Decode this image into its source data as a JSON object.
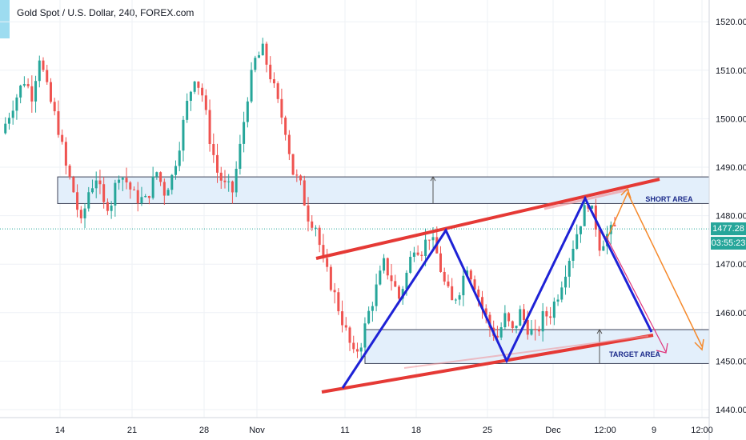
{
  "header": {
    "title": "Gold Spot / U.S. Dollar, 240, FOREX.com"
  },
  "price_axis": {
    "current_price": "1477.28",
    "countdown": "03:55:23",
    "current_color": "#26a69a",
    "countdown_color": "#26a69a"
  },
  "colors": {
    "up": "#26a69a",
    "down": "#ef5350",
    "zone_fill": "#e3effb",
    "channel": "#e53935",
    "pattern": "#1e22d6",
    "orange_arrow": "#f5892b",
    "pink_arrow": "#e0347a"
  },
  "chart_data": {
    "type": "candlestick",
    "symbol": "Gold Spot / U.S. Dollar",
    "timeframe": "240",
    "source": "FOREX.com",
    "ylim": [
      1438,
      1527
    ],
    "y_ticks": [
      1440,
      1450,
      1460,
      1470,
      1480,
      1490,
      1500,
      1510,
      1520
    ],
    "y_tick_labels": [
      "1440.00",
      "1450.00",
      "1460.00",
      "1470.00",
      "1480.00",
      "1490.00",
      "1500.00",
      "1510.00",
      "1520.00"
    ],
    "x_tick_labels": [
      "14",
      "21",
      "28",
      "Nov",
      "11",
      "18",
      "25",
      "Dec",
      "12:00",
      "9",
      "12:00"
    ],
    "close_path": [
      [
        0,
        1497
      ],
      [
        3,
        1503
      ],
      [
        6,
        1508
      ],
      [
        8,
        1505
      ],
      [
        10,
        1513
      ],
      [
        12,
        1506
      ],
      [
        15,
        1498
      ],
      [
        17,
        1490
      ],
      [
        19,
        1485
      ],
      [
        21,
        1478
      ],
      [
        23,
        1485
      ],
      [
        25,
        1488
      ],
      [
        27,
        1482
      ],
      [
        29,
        1483
      ],
      [
        31,
        1489
      ],
      [
        33,
        1487
      ],
      [
        35,
        1484
      ],
      [
        38,
        1483
      ],
      [
        41,
        1489
      ],
      [
        43,
        1485
      ],
      [
        45,
        1488
      ],
      [
        47,
        1495
      ],
      [
        49,
        1503
      ],
      [
        51,
        1509
      ],
      [
        53,
        1505
      ],
      [
        55,
        1496
      ],
      [
        57,
        1489
      ],
      [
        59,
        1486
      ],
      [
        61,
        1485
      ],
      [
        63,
        1494
      ],
      [
        65,
        1505
      ],
      [
        67,
        1512
      ],
      [
        69,
        1514
      ],
      [
        71,
        1509
      ],
      [
        73,
        1503
      ],
      [
        75,
        1498
      ],
      [
        77,
        1489
      ],
      [
        79,
        1486
      ],
      [
        81,
        1480
      ],
      [
        83,
        1478
      ],
      [
        85,
        1470
      ],
      [
        87,
        1466
      ],
      [
        89,
        1461
      ],
      [
        91,
        1456
      ],
      [
        93,
        1451
      ],
      [
        95,
        1454
      ],
      [
        97,
        1460
      ],
      [
        99,
        1465
      ],
      [
        101,
        1470
      ],
      [
        103,
        1467
      ],
      [
        105,
        1463
      ],
      [
        107,
        1468
      ],
      [
        109,
        1474
      ],
      [
        111,
        1473
      ],
      [
        113,
        1476
      ],
      [
        115,
        1472
      ],
      [
        117,
        1466
      ],
      [
        119,
        1462
      ],
      [
        121,
        1465
      ],
      [
        123,
        1470
      ],
      [
        125,
        1466
      ],
      [
        127,
        1461
      ],
      [
        129,
        1457
      ],
      [
        131,
        1455
      ],
      [
        133,
        1459
      ],
      [
        135,
        1456
      ],
      [
        137,
        1460
      ],
      [
        139,
        1457
      ],
      [
        141,
        1455
      ],
      [
        143,
        1459
      ],
      [
        145,
        1460
      ],
      [
        147,
        1464
      ],
      [
        149,
        1469
      ],
      [
        151,
        1474
      ],
      [
        153,
        1479
      ],
      [
        155,
        1483
      ],
      [
        157,
        1478
      ],
      [
        158,
        1474
      ],
      [
        160,
        1476
      ],
      [
        162,
        1477.28
      ]
    ],
    "annotations": [
      {
        "type": "zone",
        "label": "SHORT AREA",
        "y_range": [
          1482.5,
          1488
        ]
      },
      {
        "type": "zone",
        "label": "TARGET AREA",
        "y_range": [
          1449.5,
          1456.5
        ]
      },
      {
        "type": "trend-line",
        "name": "channel-top",
        "from": [
          1472,
          "Nov 7"
        ],
        "to": [
          1489,
          "Dec 9"
        ]
      },
      {
        "type": "trend-line",
        "name": "channel-bottom",
        "from": [
          1443.5,
          "Nov 11"
        ],
        "to": [
          1456,
          "Dec 9"
        ]
      },
      {
        "type": "pattern",
        "name": "zigzag",
        "points": [
          1445,
          1478,
          1451,
          1485,
          1456.5
        ]
      },
      {
        "type": "arrow",
        "name": "orange-projection",
        "points": [
          1477.5,
          1485.5,
          1452
        ]
      },
      {
        "type": "arrow",
        "name": "pink-projection",
        "points": [
          1477.5,
          1451.5
        ]
      }
    ]
  }
}
